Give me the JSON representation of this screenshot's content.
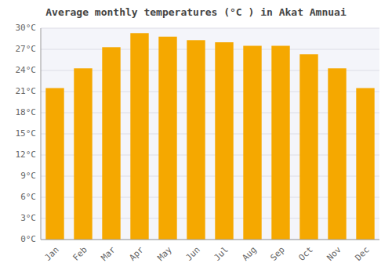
{
  "chart_data": {
    "type": "bar",
    "title": "Average monthly temperatures (°C ) in Akat Amnuai",
    "categories": [
      "Jan",
      "Feb",
      "Mar",
      "Apr",
      "May",
      "Jun",
      "Jul",
      "Aug",
      "Sep",
      "Oct",
      "Nov",
      "Dec"
    ],
    "values": [
      21.5,
      24.3,
      27.3,
      29.3,
      28.8,
      28.3,
      28.0,
      27.5,
      27.5,
      26.3,
      24.3,
      21.5
    ],
    "color": "#F5A800",
    "ylim": [
      0,
      30
    ],
    "yticks": [
      {
        "value": 0,
        "label": "0°C"
      },
      {
        "value": 3,
        "label": "3°C"
      },
      {
        "value": 6,
        "label": "6°C"
      },
      {
        "value": 9,
        "label": "9°C"
      },
      {
        "value": 12,
        "label": "12°C"
      },
      {
        "value": 15,
        "label": "15°C"
      },
      {
        "value": 18,
        "label": "18°C"
      },
      {
        "value": 21,
        "label": "21°C"
      },
      {
        "value": 24,
        "label": "24°C"
      },
      {
        "value": 27,
        "label": "27°C"
      },
      {
        "value": 30,
        "label": "30°C"
      }
    ],
    "grid": true
  }
}
